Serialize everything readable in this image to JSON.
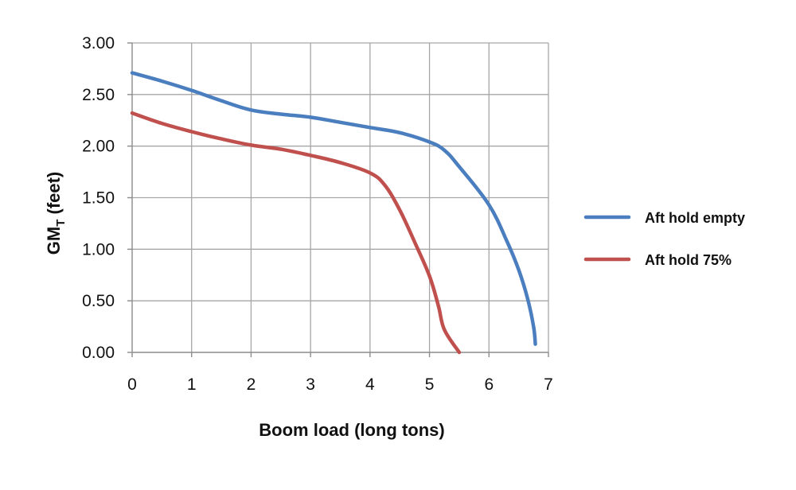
{
  "chart_data": {
    "type": "line",
    "title": "",
    "xlabel": "Boom load (long tons)",
    "ylabel_main": "GM",
    "ylabel_sub": "T",
    "ylabel_suffix": " (feet)",
    "xlim": [
      0,
      7
    ],
    "ylim": [
      0,
      3
    ],
    "x_ticks": [
      "0",
      "1",
      "2",
      "3",
      "4",
      "5",
      "6",
      "7"
    ],
    "y_ticks": [
      "0.00",
      "0.50",
      "1.00",
      "1.50",
      "2.00",
      "2.50",
      "3.00"
    ],
    "grid": true,
    "legend_position": "right",
    "series": [
      {
        "name": "Aft hold empty",
        "color": "#4a7ebf",
        "points": [
          [
            0,
            2.71
          ],
          [
            0.5,
            2.63
          ],
          [
            1,
            2.54
          ],
          [
            1.5,
            2.44
          ],
          [
            2,
            2.35
          ],
          [
            2.5,
            2.31
          ],
          [
            3,
            2.28
          ],
          [
            3.5,
            2.23
          ],
          [
            4,
            2.18
          ],
          [
            4.5,
            2.13
          ],
          [
            5,
            2.04
          ],
          [
            5.25,
            1.96
          ],
          [
            5.5,
            1.8
          ],
          [
            6,
            1.43
          ],
          [
            6.3,
            1.08
          ],
          [
            6.5,
            0.8
          ],
          [
            6.65,
            0.52
          ],
          [
            6.75,
            0.25
          ],
          [
            6.78,
            0.08
          ]
        ]
      },
      {
        "name": "Aft hold 75%",
        "color": "#c0504d",
        "points": [
          [
            0,
            2.32
          ],
          [
            0.5,
            2.22
          ],
          [
            1,
            2.14
          ],
          [
            1.5,
            2.07
          ],
          [
            2,
            2.01
          ],
          [
            2.5,
            1.97
          ],
          [
            3,
            1.91
          ],
          [
            3.5,
            1.84
          ],
          [
            4,
            1.74
          ],
          [
            4.25,
            1.62
          ],
          [
            4.5,
            1.38
          ],
          [
            4.75,
            1.07
          ],
          [
            5,
            0.74
          ],
          [
            5.15,
            0.45
          ],
          [
            5.25,
            0.22
          ],
          [
            5.5,
            0.0
          ]
        ]
      }
    ]
  }
}
